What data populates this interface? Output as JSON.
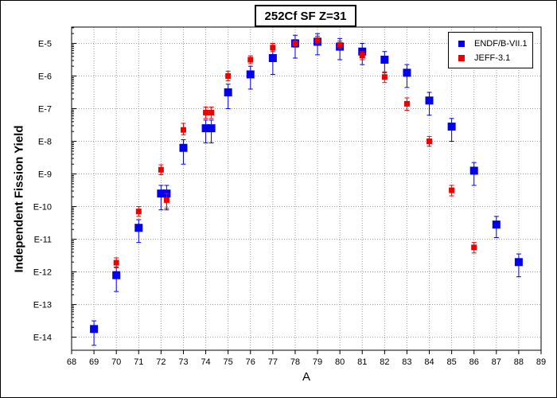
{
  "chart_data": {
    "type": "scatter",
    "title": "252Cf SF Z=31",
    "xlabel": "A",
    "ylabel": "Independent Fission Yield",
    "xlim": [
      68,
      89
    ],
    "ylim_exponent": [
      -14.4,
      -4.5
    ],
    "log_scale_y": true,
    "grid": true,
    "legend_position": "top-right",
    "x_ticks": [
      68,
      69,
      70,
      71,
      72,
      73,
      74,
      75,
      76,
      77,
      78,
      79,
      80,
      81,
      82,
      83,
      84,
      85,
      86,
      87,
      88,
      89
    ],
    "y_ticks": [
      {
        "exp": -5,
        "label": "E-5"
      },
      {
        "exp": -6,
        "label": "E-6"
      },
      {
        "exp": -7,
        "label": "E-7"
      },
      {
        "exp": -8,
        "label": "E-8"
      },
      {
        "exp": -9,
        "label": "E-9"
      },
      {
        "exp": -10,
        "label": "E-10"
      },
      {
        "exp": -11,
        "label": "E-11"
      },
      {
        "exp": -12,
        "label": "E-12"
      },
      {
        "exp": -13,
        "label": "E-13"
      },
      {
        "exp": -14,
        "label": "E-14"
      }
    ],
    "series": [
      {
        "name": "ENDF/B-VII.1",
        "color": "#0000ee",
        "marker": "square-large",
        "points": [
          {
            "x": 69,
            "yexp": -13.75,
            "err_lo": -14.25,
            "err_hi": -13.5
          },
          {
            "x": 70,
            "yexp": -12.1,
            "err_lo": -12.6,
            "err_hi": -11.85
          },
          {
            "x": 71,
            "yexp": -10.65,
            "err_lo": -11.1,
            "err_hi": -10.4
          },
          {
            "x": 72,
            "yexp": -9.6,
            "err_lo": -10.1,
            "err_hi": -9.35
          },
          {
            "x": 72.25,
            "yexp": -9.6,
            "err_lo": -10.1,
            "err_hi": -9.35
          },
          {
            "x": 73,
            "yexp": -8.2,
            "err_lo": -8.7,
            "err_hi": -7.95
          },
          {
            "x": 74,
            "yexp": -7.6,
            "err_lo": -8.05,
            "err_hi": -7.35
          },
          {
            "x": 74.25,
            "yexp": -7.6,
            "err_lo": -8.05,
            "err_hi": -7.35
          },
          {
            "x": 75,
            "yexp": -6.5,
            "err_lo": -7,
            "err_hi": -6.25
          },
          {
            "x": 76,
            "yexp": -5.95,
            "err_lo": -6.4,
            "err_hi": -5.7
          },
          {
            "x": 77,
            "yexp": -5.45,
            "err_lo": -5.95,
            "err_hi": -5.2
          },
          {
            "x": 78,
            "yexp": -5.0,
            "err_lo": -5.45,
            "err_hi": -4.75
          },
          {
            "x": 79,
            "yexp": -4.95,
            "err_lo": -5.35,
            "err_hi": -4.7
          },
          {
            "x": 80,
            "yexp": -5.1,
            "err_lo": -5.5,
            "err_hi": -4.85
          },
          {
            "x": 81,
            "yexp": -5.25,
            "err_lo": -5.65,
            "err_hi": -5.0
          },
          {
            "x": 82,
            "yexp": -5.5,
            "err_lo": -5.9,
            "err_hi": -5.25
          },
          {
            "x": 83,
            "yexp": -5.9,
            "err_lo": -6.35,
            "err_hi": -5.65
          },
          {
            "x": 84,
            "yexp": -6.75,
            "err_lo": -7.2,
            "err_hi": -6.5
          },
          {
            "x": 85,
            "yexp": -7.55,
            "err_lo": -8.0,
            "err_hi": -7.3
          },
          {
            "x": 86,
            "yexp": -8.9,
            "err_lo": -9.35,
            "err_hi": -8.65
          },
          {
            "x": 87,
            "yexp": -10.55,
            "err_lo": -10.95,
            "err_hi": -10.3
          },
          {
            "x": 88,
            "yexp": -11.7,
            "err_lo": -12.15,
            "err_hi": -11.45
          }
        ]
      },
      {
        "name": "JEFF-3.1",
        "color": "#ee0000",
        "marker": "square-small",
        "points": [
          {
            "x": 70,
            "yexp": -11.72,
            "err_lo": -11.87,
            "err_hi": -11.57
          },
          {
            "x": 71,
            "yexp": -10.15,
            "err_lo": -10.3,
            "err_hi": -10.0
          },
          {
            "x": 72,
            "yexp": -8.87,
            "err_lo": -9.02,
            "err_hi": -8.72
          },
          {
            "x": 72.25,
            "yexp": -9.8,
            "err_lo": -10.05,
            "err_hi": -9.6
          },
          {
            "x": 73,
            "yexp": -7.65,
            "err_lo": -7.8,
            "err_hi": -7.45
          },
          {
            "x": 74,
            "yexp": -7.12,
            "err_lo": -7.3,
            "err_hi": -6.95
          },
          {
            "x": 74.25,
            "yexp": -7.12,
            "err_lo": -7.3,
            "err_hi": -6.95
          },
          {
            "x": 75,
            "yexp": -6.0,
            "err_lo": -6.15,
            "err_hi": -5.85
          },
          {
            "x": 76,
            "yexp": -5.5,
            "err_lo": -5.62,
            "err_hi": -5.38
          },
          {
            "x": 77,
            "yexp": -5.13,
            "err_lo": -5.25,
            "err_hi": -5.0
          },
          {
            "x": 78,
            "yexp": -5.0,
            "err_lo": -5.12,
            "err_hi": -4.88
          },
          {
            "x": 79,
            "yexp": -4.9,
            "err_lo": -5.02,
            "err_hi": -4.78
          },
          {
            "x": 80,
            "yexp": -5.05,
            "err_lo": -5.17,
            "err_hi": -4.93
          },
          {
            "x": 81,
            "yexp": -5.37,
            "err_lo": -5.5,
            "err_hi": -5.25
          },
          {
            "x": 82,
            "yexp": -6.03,
            "err_lo": -6.2,
            "err_hi": -5.87
          },
          {
            "x": 83,
            "yexp": -6.85,
            "err_lo": -7.05,
            "err_hi": -6.67
          },
          {
            "x": 84,
            "yexp": -8.0,
            "err_lo": -8.15,
            "err_hi": -7.85
          },
          {
            "x": 85,
            "yexp": -9.5,
            "err_lo": -9.67,
            "err_hi": -9.35
          },
          {
            "x": 86,
            "yexp": -11.25,
            "err_lo": -11.42,
            "err_hi": -11.1
          }
        ]
      }
    ]
  }
}
